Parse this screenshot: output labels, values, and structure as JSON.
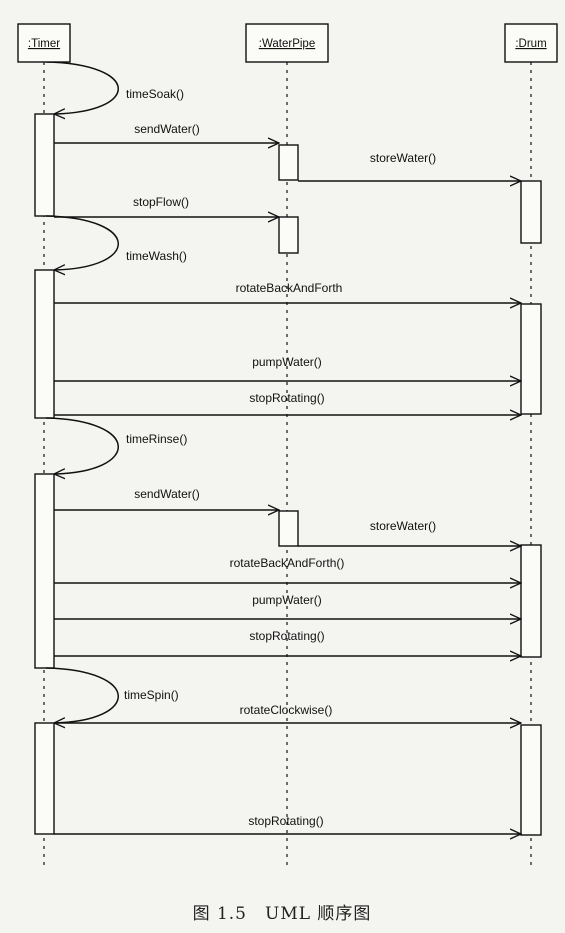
{
  "objects": [
    {
      "name": ":Timer"
    },
    {
      "name": ":WaterPipe"
    },
    {
      "name": ":Drum"
    }
  ],
  "messages": [
    {
      "from": 0,
      "to": 0,
      "label": "timeSoak()"
    },
    {
      "from": 0,
      "to": 1,
      "label": "sendWater()"
    },
    {
      "from": 1,
      "to": 2,
      "label": "storeWater()"
    },
    {
      "from": 0,
      "to": 1,
      "label": "stopFlow()"
    },
    {
      "from": 0,
      "to": 0,
      "label": "timeWash()"
    },
    {
      "from": 0,
      "to": 2,
      "label": "rotateBackAndForth"
    },
    {
      "from": 0,
      "to": 2,
      "label": "pumpWater()"
    },
    {
      "from": 0,
      "to": 2,
      "label": "stopRotating()"
    },
    {
      "from": 0,
      "to": 0,
      "label": "timeRinse()"
    },
    {
      "from": 0,
      "to": 1,
      "label": "sendWater()"
    },
    {
      "from": 1,
      "to": 2,
      "label": "storeWater()"
    },
    {
      "from": 0,
      "to": 2,
      "label": "rotateBackAndForth()"
    },
    {
      "from": 0,
      "to": 2,
      "label": "pumpWater()"
    },
    {
      "from": 0,
      "to": 2,
      "label": "stopRotating()"
    },
    {
      "from": 0,
      "to": 0,
      "label": "timeSpin()"
    },
    {
      "from": 0,
      "to": 2,
      "label": "rotateClockwise()"
    },
    {
      "from": 0,
      "to": 2,
      "label": "stopRotating()"
    }
  ],
  "caption": "图 1.5　UML 顺序图"
}
